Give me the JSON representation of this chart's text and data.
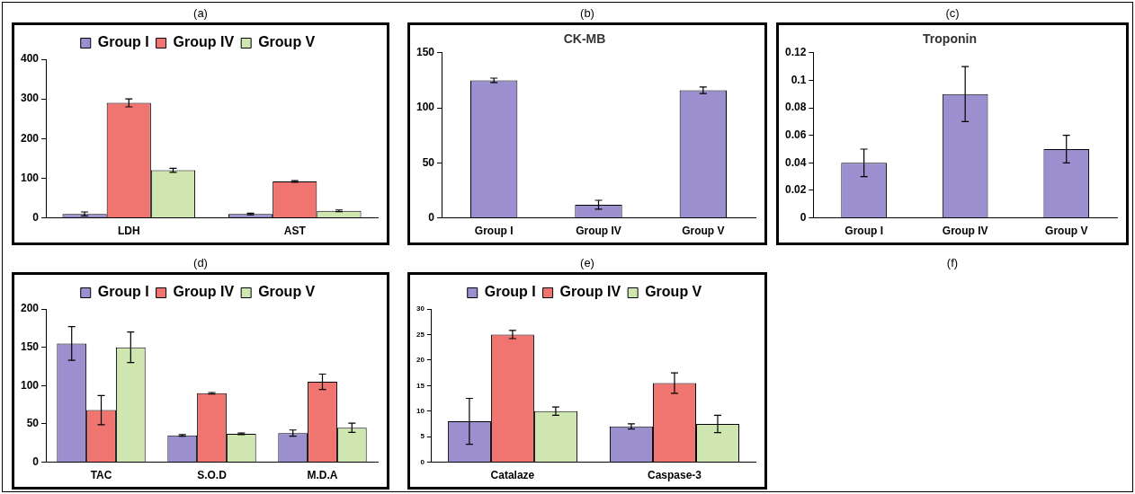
{
  "chart_data": [
    {
      "type": "bar",
      "title": "(a)",
      "categories": [
        "LDH",
        "AST"
      ],
      "ylim": [
        0,
        400
      ],
      "yticks": [
        0,
        100,
        200,
        300,
        400
      ],
      "grid": false,
      "legend": "top",
      "series": [
        {
          "name": "Group I",
          "color": "#9b8fcf",
          "values": [
            10,
            10
          ],
          "errors": [
            5,
            2
          ]
        },
        {
          "name": "Group IV",
          "color": "#f07470",
          "values": [
            290,
            92
          ],
          "errors": [
            10,
            2
          ]
        },
        {
          "name": "Group V",
          "color": "#cfe6b0",
          "values": [
            120,
            18
          ],
          "errors": [
            5,
            2
          ]
        }
      ]
    },
    {
      "type": "bar",
      "title": "(b)",
      "subtitle": "CK-MB",
      "categories": [
        "Group I",
        "Group IV",
        "Group V"
      ],
      "ylim": [
        0,
        150
      ],
      "yticks": [
        0,
        50,
        100,
        150
      ],
      "grid": false,
      "legend": false,
      "color": "#9b8fcf",
      "values": [
        125,
        12,
        116
      ],
      "errors": [
        2,
        4,
        3
      ]
    },
    {
      "type": "bar",
      "title": "(c)",
      "subtitle": "Troponin",
      "categories": [
        "Group I",
        "Group IV",
        "Group V"
      ],
      "ylim": [
        0,
        0.12
      ],
      "yticks": [
        0,
        0.02,
        0.04,
        0.06,
        0.08,
        0.1,
        0.12
      ],
      "grid": false,
      "legend": false,
      "color": "#9b8fcf",
      "values": [
        0.04,
        0.09,
        0.05
      ],
      "errors": [
        0.01,
        0.02,
        0.01
      ]
    },
    {
      "type": "bar",
      "title": "(d)",
      "categories": [
        "TAC",
        "S.O.D",
        "M.D.A"
      ],
      "ylim": [
        0,
        200
      ],
      "yticks": [
        0,
        50,
        100,
        150,
        200
      ],
      "grid": false,
      "legend": "top",
      "series": [
        {
          "name": "Group I",
          "color": "#9b8fcf",
          "values": [
            155,
            35,
            38
          ],
          "errors": [
            22,
            1,
            4
          ]
        },
        {
          "name": "Group IV",
          "color": "#f07470",
          "values": [
            68,
            90,
            105
          ],
          "errors": [
            19,
            1,
            10
          ]
        },
        {
          "name": "Group V",
          "color": "#cfe6b0",
          "values": [
            150,
            37,
            45
          ],
          "errors": [
            20,
            1,
            6
          ]
        }
      ]
    },
    {
      "type": "bar",
      "title": "(e)",
      "categories": [
        "Catalaze",
        "Caspase-3"
      ],
      "ylim": [
        0,
        30
      ],
      "yticks": [
        0,
        5,
        10,
        15,
        20,
        25,
        30
      ],
      "grid": false,
      "legend": "top",
      "series": [
        {
          "name": "Group I",
          "color": "#9b8fcf",
          "values": [
            8,
            7
          ],
          "errors": [
            4.5,
            0.5
          ]
        },
        {
          "name": "Group IV",
          "color": "#f07470",
          "values": [
            25,
            15.5
          ],
          "errors": [
            0.8,
            2
          ]
        },
        {
          "name": "Group V",
          "color": "#cfe6b0",
          "values": [
            10,
            7.5
          ],
          "errors": [
            0.8,
            1.7
          ]
        }
      ]
    },
    {
      "type": "other",
      "title": "(f)"
    }
  ]
}
